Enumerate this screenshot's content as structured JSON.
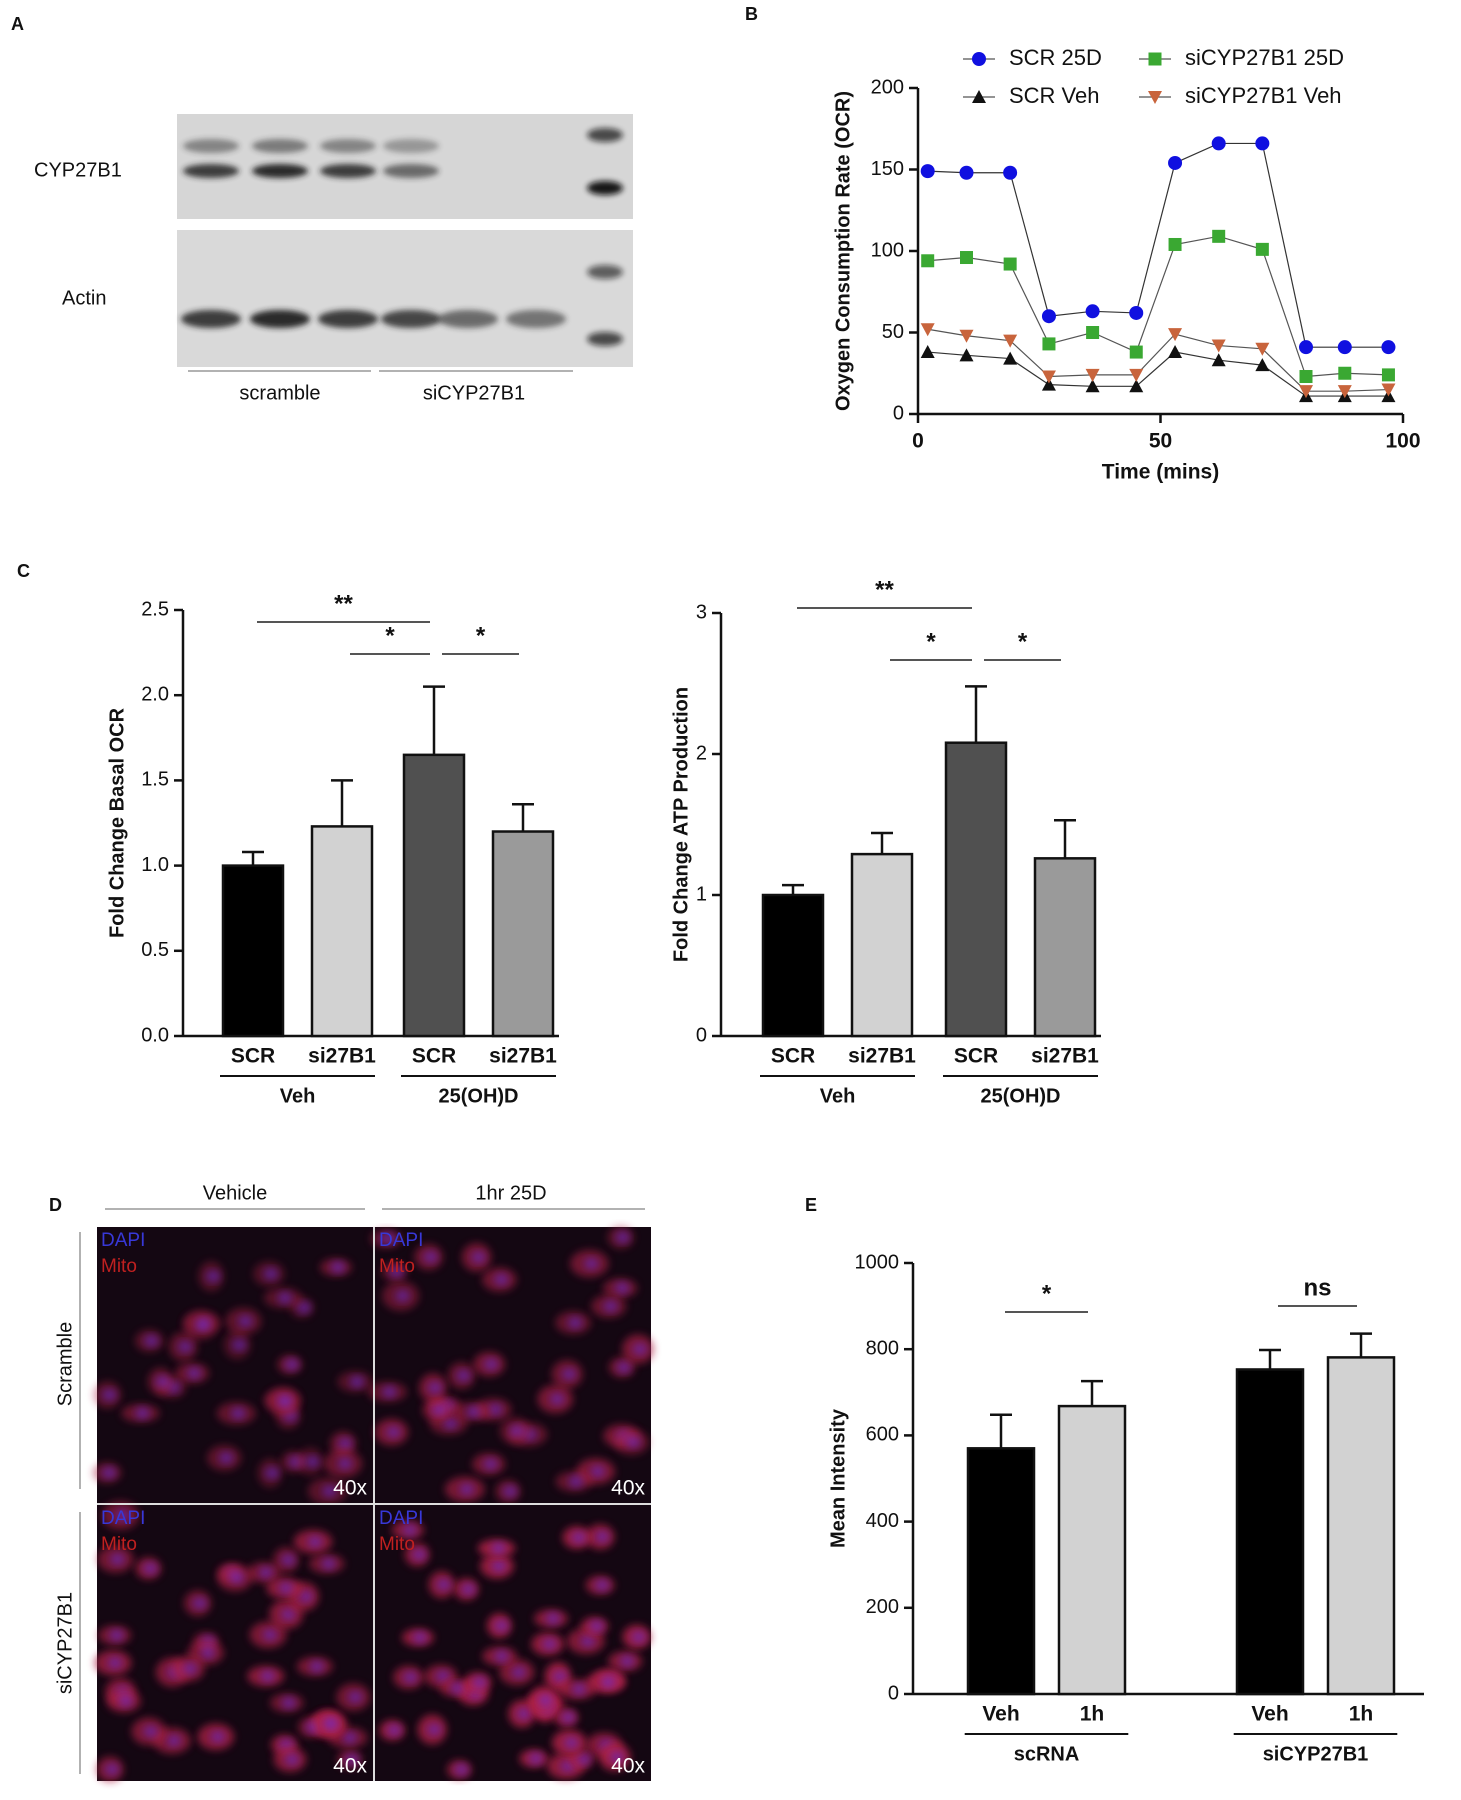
{
  "panel_labels": [
    "A",
    "B",
    "C",
    "D",
    "E"
  ],
  "blot": {
    "bands": [
      "CYP27B1",
      "Actin"
    ],
    "groups": [
      "scramble",
      "siCYP27B1"
    ]
  },
  "microscopy": {
    "columns": [
      "Vehicle",
      "1hr 25D"
    ],
    "rows": [
      "Scramble",
      "siCYP27B1"
    ],
    "cells": [
      {
        "stains": [
          "DAPI",
          "Mito"
        ],
        "magnification": "40x"
      },
      {
        "stains": [
          "DAPI",
          "Mito"
        ],
        "magnification": "40x"
      },
      {
        "stains": [
          "DAPI",
          "Mito"
        ],
        "magnification": "40x"
      },
      {
        "stains": [
          "DAPI",
          "Mito"
        ],
        "magnification": "40x"
      }
    ]
  },
  "chart_data": [
    {
      "type": "line",
      "x_label": "Time (mins)",
      "y_label": "Oxygen Consumption Rate (OCR)",
      "x": [
        2,
        10,
        19,
        27,
        36,
        45,
        53,
        62,
        71,
        80,
        88,
        97
      ],
      "series": [
        {
          "name": "SCR 25D",
          "color": "#1010e0",
          "marker": "circle",
          "values": [
            149,
            148,
            148,
            60,
            63,
            62,
            154,
            166,
            166,
            41,
            41,
            41
          ]
        },
        {
          "name": "siCYP27B1 25D",
          "color": "#3aa832",
          "marker": "square",
          "values": [
            94,
            96,
            92,
            43,
            50,
            38,
            104,
            109,
            101,
            23,
            25,
            24
          ]
        },
        {
          "name": "SCR Veh",
          "color": "#111111",
          "marker": "triangle-up",
          "values": [
            38,
            36,
            34,
            18,
            17,
            17,
            38,
            33,
            30,
            11,
            11,
            11
          ]
        },
        {
          "name": "siCYP27B1 Veh",
          "color": "#c8643c",
          "marker": "triangle-down",
          "values": [
            52,
            48,
            45,
            23,
            24,
            24,
            49,
            42,
            40,
            14,
            14,
            15
          ]
        }
      ],
      "xlim": [
        0,
        100
      ],
      "xticks": [
        0,
        50,
        100
      ],
      "ylim": [
        0,
        200
      ],
      "yticks": [
        0,
        50,
        100,
        150,
        200
      ],
      "legend": "top"
    },
    {
      "type": "bar",
      "y_label": "Fold Change Basal OCR",
      "categories": [
        "SCR",
        "si27B1",
        "SCR",
        "si27B1"
      ],
      "values": [
        1.0,
        1.23,
        1.65,
        1.2
      ],
      "errors": [
        0.08,
        0.27,
        0.4,
        0.16
      ],
      "colors": [
        "#000000",
        "#d2d2d2",
        "#505050",
        "#9a9a9a"
      ],
      "groups": [
        {
          "label": "Veh",
          "span": [
            0,
            1
          ]
        },
        {
          "label": "25(OH)D",
          "span": [
            2,
            3
          ]
        }
      ],
      "annotations": [
        {
          "text": "**",
          "span": [
            0,
            2
          ]
        },
        {
          "text": "*",
          "span": [
            1,
            2
          ]
        },
        {
          "text": "*",
          "span": [
            2,
            3
          ]
        }
      ],
      "ylim": [
        0,
        2.5
      ],
      "yticks": [
        {
          "value": 0,
          "label": "0.0"
        },
        0.5,
        {
          "value": 1,
          "label": "1.0"
        },
        1.5,
        {
          "value": 2,
          "label": "2.0"
        },
        2.5
      ]
    },
    {
      "type": "bar",
      "y_label": "Fold Change ATP Production",
      "categories": [
        "SCR",
        "si27B1",
        "SCR",
        "si27B1"
      ],
      "values": [
        1.0,
        1.29,
        2.08,
        1.26
      ],
      "errors": [
        0.07,
        0.15,
        0.4,
        0.27
      ],
      "colors": [
        "#000000",
        "#d2d2d2",
        "#505050",
        "#9a9a9a"
      ],
      "groups": [
        {
          "label": "Veh",
          "span": [
            0,
            1
          ]
        },
        {
          "label": "25(OH)D",
          "span": [
            2,
            3
          ]
        }
      ],
      "annotations": [
        {
          "text": "**",
          "span": [
            0,
            2
          ]
        },
        {
          "text": "*",
          "span": [
            1,
            2
          ]
        },
        {
          "text": "*",
          "span": [
            2,
            3
          ]
        }
      ],
      "ylim": [
        0,
        3
      ],
      "yticks": [
        0,
        1,
        2,
        3
      ]
    },
    {
      "type": "bar",
      "y_label": "Mean Intensity",
      "categories": [
        "Veh",
        "1h",
        "Veh",
        "1h"
      ],
      "values": [
        570,
        668,
        753,
        781
      ],
      "errors": [
        78,
        58,
        45,
        55
      ],
      "colors": [
        "#000000",
        "#d2d2d2",
        "#000000",
        "#d2d2d2"
      ],
      "groups": [
        {
          "label": "scRNA",
          "span": [
            0,
            1
          ]
        },
        {
          "label": "siCYP27B1",
          "span": [
            2,
            3
          ]
        }
      ],
      "annotations": [
        {
          "text": "*",
          "span": [
            0,
            1
          ]
        },
        {
          "text": "ns",
          "span": [
            2,
            3
          ]
        }
      ],
      "ylim": [
        0,
        1000
      ],
      "yticks": [
        0,
        200,
        400,
        600,
        800,
        1000
      ]
    }
  ]
}
